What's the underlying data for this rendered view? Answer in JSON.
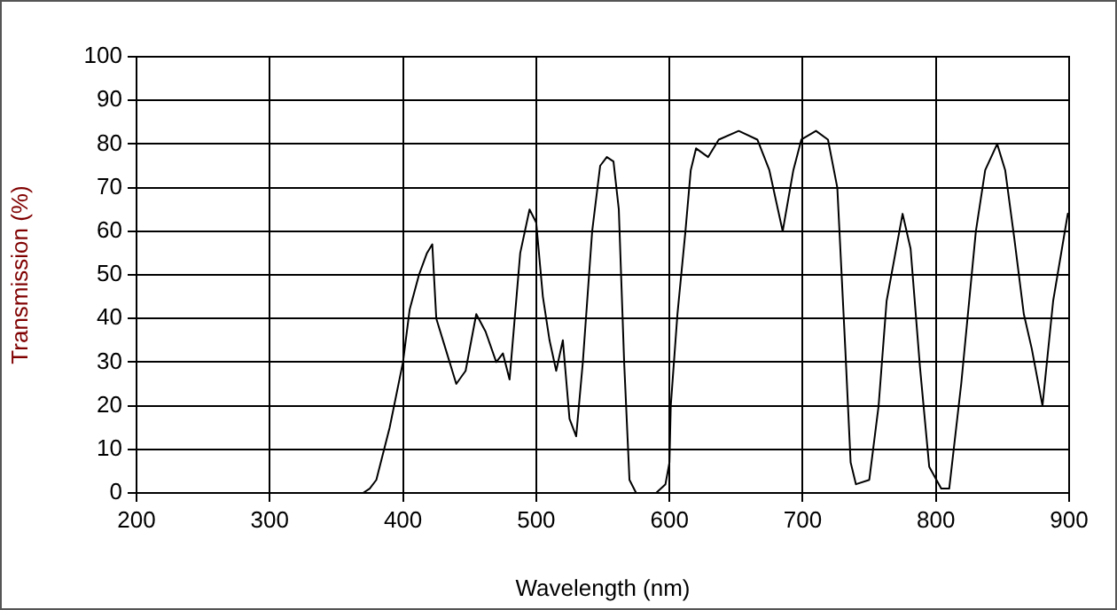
{
  "chart_data": {
    "type": "line",
    "xlabel": "Wavelength (nm)",
    "ylabel": "Transmission (%)",
    "xlim": [
      200,
      900
    ],
    "xticks": [
      200,
      300,
      400,
      500,
      600,
      700,
      800,
      900
    ],
    "ylim": [
      0,
      100
    ],
    "yticks": [
      0,
      10,
      20,
      30,
      40,
      50,
      60,
      70,
      80,
      90,
      100
    ],
    "grid": true,
    "legend": false,
    "marker": "none",
    "line_style": "solid",
    "series": [
      {
        "color": "#000000",
        "x": [
          200,
          300,
          370,
          375,
          380,
          390,
          400,
          405,
          412,
          418,
          422,
          425,
          432,
          440,
          447,
          455,
          462,
          470,
          475,
          480,
          488,
          495,
          500,
          505,
          510,
          515,
          520,
          525,
          530,
          535,
          542,
          548,
          553,
          558,
          562,
          566,
          570,
          575,
          590,
          597,
          600,
          601,
          606,
          612,
          616,
          620,
          629,
          637,
          652,
          666,
          675,
          685,
          693,
          699,
          710,
          719,
          726,
          732,
          736,
          740,
          750,
          757,
          763,
          775,
          781,
          788,
          795,
          804,
          810,
          819,
          830,
          837,
          846,
          852,
          859,
          866,
          872,
          880,
          888,
          899,
          900
        ],
        "values": [
          0,
          0,
          0,
          1,
          3,
          15,
          30,
          42,
          50,
          55,
          57,
          40,
          33,
          25,
          28,
          41,
          37,
          30,
          32,
          26,
          55,
          65,
          62,
          45,
          35,
          28,
          35,
          17,
          13,
          30,
          60,
          75,
          77,
          76,
          65,
          30,
          3,
          0,
          0,
          2,
          7,
          20,
          41,
          60,
          74,
          79,
          77,
          81,
          83,
          81,
          74,
          60,
          74,
          81,
          83,
          81,
          70,
          33,
          7,
          2,
          3,
          20,
          44,
          64,
          56,
          29,
          6,
          1,
          1,
          25,
          60,
          74,
          80,
          74,
          58,
          41,
          33,
          20,
          44,
          64,
          64
        ]
      }
    ]
  }
}
